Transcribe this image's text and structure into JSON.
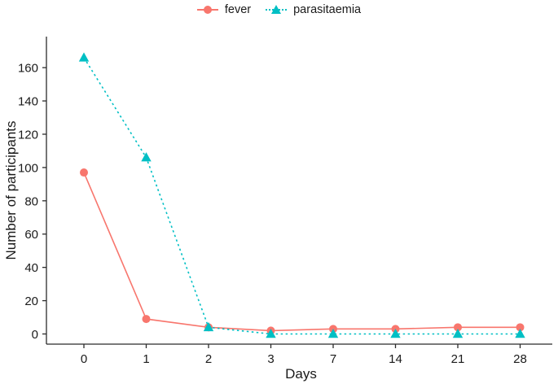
{
  "figure": {
    "background": "#ffffff",
    "axis_color": "#2b2b2b",
    "text_color": "#1a1a1a"
  },
  "legend": {
    "position": "top-center",
    "items": [
      {
        "label": "fever",
        "marker": "circle-icon",
        "line_style": "solid",
        "color": "#F8766D"
      },
      {
        "label": "parasitaemia",
        "marker": "triangle-icon",
        "line_style": "dashed",
        "color": "#00BFC4"
      }
    ]
  },
  "chart_data": {
    "type": "line",
    "title": "",
    "xlabel": "Days",
    "ylabel": "Number of participants",
    "categories": [
      "0",
      "1",
      "2",
      "3",
      "7",
      "14",
      "21",
      "28"
    ],
    "x_spacing": "categorical-even",
    "yticks": [
      0,
      20,
      40,
      60,
      80,
      100,
      120,
      140,
      160
    ],
    "ylim": [
      0,
      178
    ],
    "grid": "off",
    "legend_position": "top-center",
    "series": [
      {
        "name": "fever",
        "color": "#F8766D",
        "marker": "circle",
        "line_style": "solid",
        "values": [
          97,
          9,
          4,
          2,
          3,
          3,
          4,
          4
        ]
      },
      {
        "name": "parasitaemia",
        "color": "#00BFC4",
        "marker": "triangle",
        "line_style": "dashed",
        "values": [
          166,
          106,
          4,
          0,
          0,
          0,
          0,
          0
        ]
      }
    ]
  }
}
